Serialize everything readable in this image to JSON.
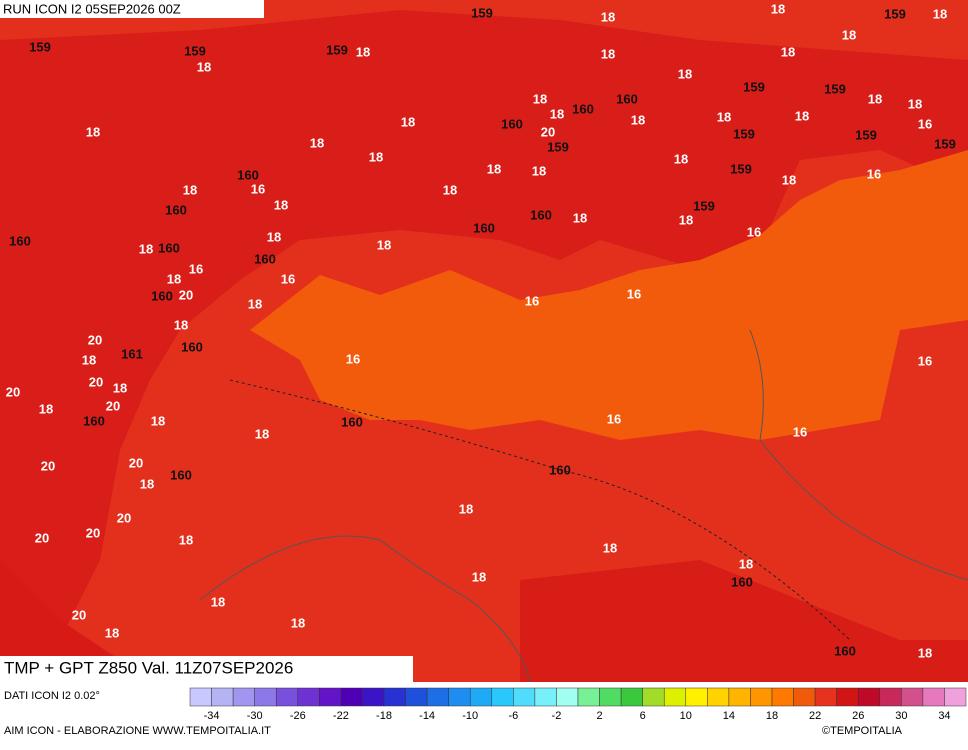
{
  "header": {
    "title": "RUN ICON I2 05SEP2026 00Z"
  },
  "map": {
    "labels": [
      "159",
      "18",
      "159",
      "159",
      "18",
      "159",
      "18",
      "18",
      "159",
      "18",
      "18",
      "18",
      "18",
      "18",
      "159",
      "159",
      "18",
      "18",
      "16",
      "159",
      "159",
      "18",
      "159",
      "18",
      "160",
      "18",
      "160",
      "18",
      "18",
      "160",
      "20",
      "159",
      "18",
      "18",
      "18",
      "18",
      "18",
      "18",
      "160",
      "16",
      "18",
      "160",
      "18",
      "160",
      "18",
      "160",
      "18",
      "18",
      "160",
      "16",
      "18",
      "20",
      "160",
      "18",
      "16",
      "18",
      "160",
      "20",
      "18",
      "161",
      "20",
      "18",
      "20",
      "18",
      "20",
      "160",
      "18",
      "18",
      "20",
      "18",
      "160",
      "20",
      "20",
      "20",
      "20",
      "18",
      "20",
      "18",
      "18",
      "18",
      "18",
      "18",
      "18",
      "18",
      "160",
      "160",
      "16",
      "16",
      "16",
      "16",
      "16",
      "16",
      "16",
      "18",
      "16",
      "159",
      "18",
      "18",
      "159",
      "18",
      "160",
      "160",
      "18",
      "160",
      "160",
      "18"
    ]
  },
  "footer": {
    "title": "TMP + GPT Z850 Val. 11Z07SEP2026",
    "data_source": "DATI ICON I2 0.02°",
    "credit": "AIM ICON - ELABORAZIONE WWW.TEMPOITALIA.IT",
    "copyright": "©TEMPOITALIA"
  },
  "colorbar": {
    "ticks": [
      "-34",
      "-30",
      "-26",
      "-22",
      "-18",
      "-14",
      "-10",
      "-6",
      "-2",
      "2",
      "6",
      "10",
      "14",
      "18",
      "22",
      "26",
      "30",
      "34"
    ]
  }
}
